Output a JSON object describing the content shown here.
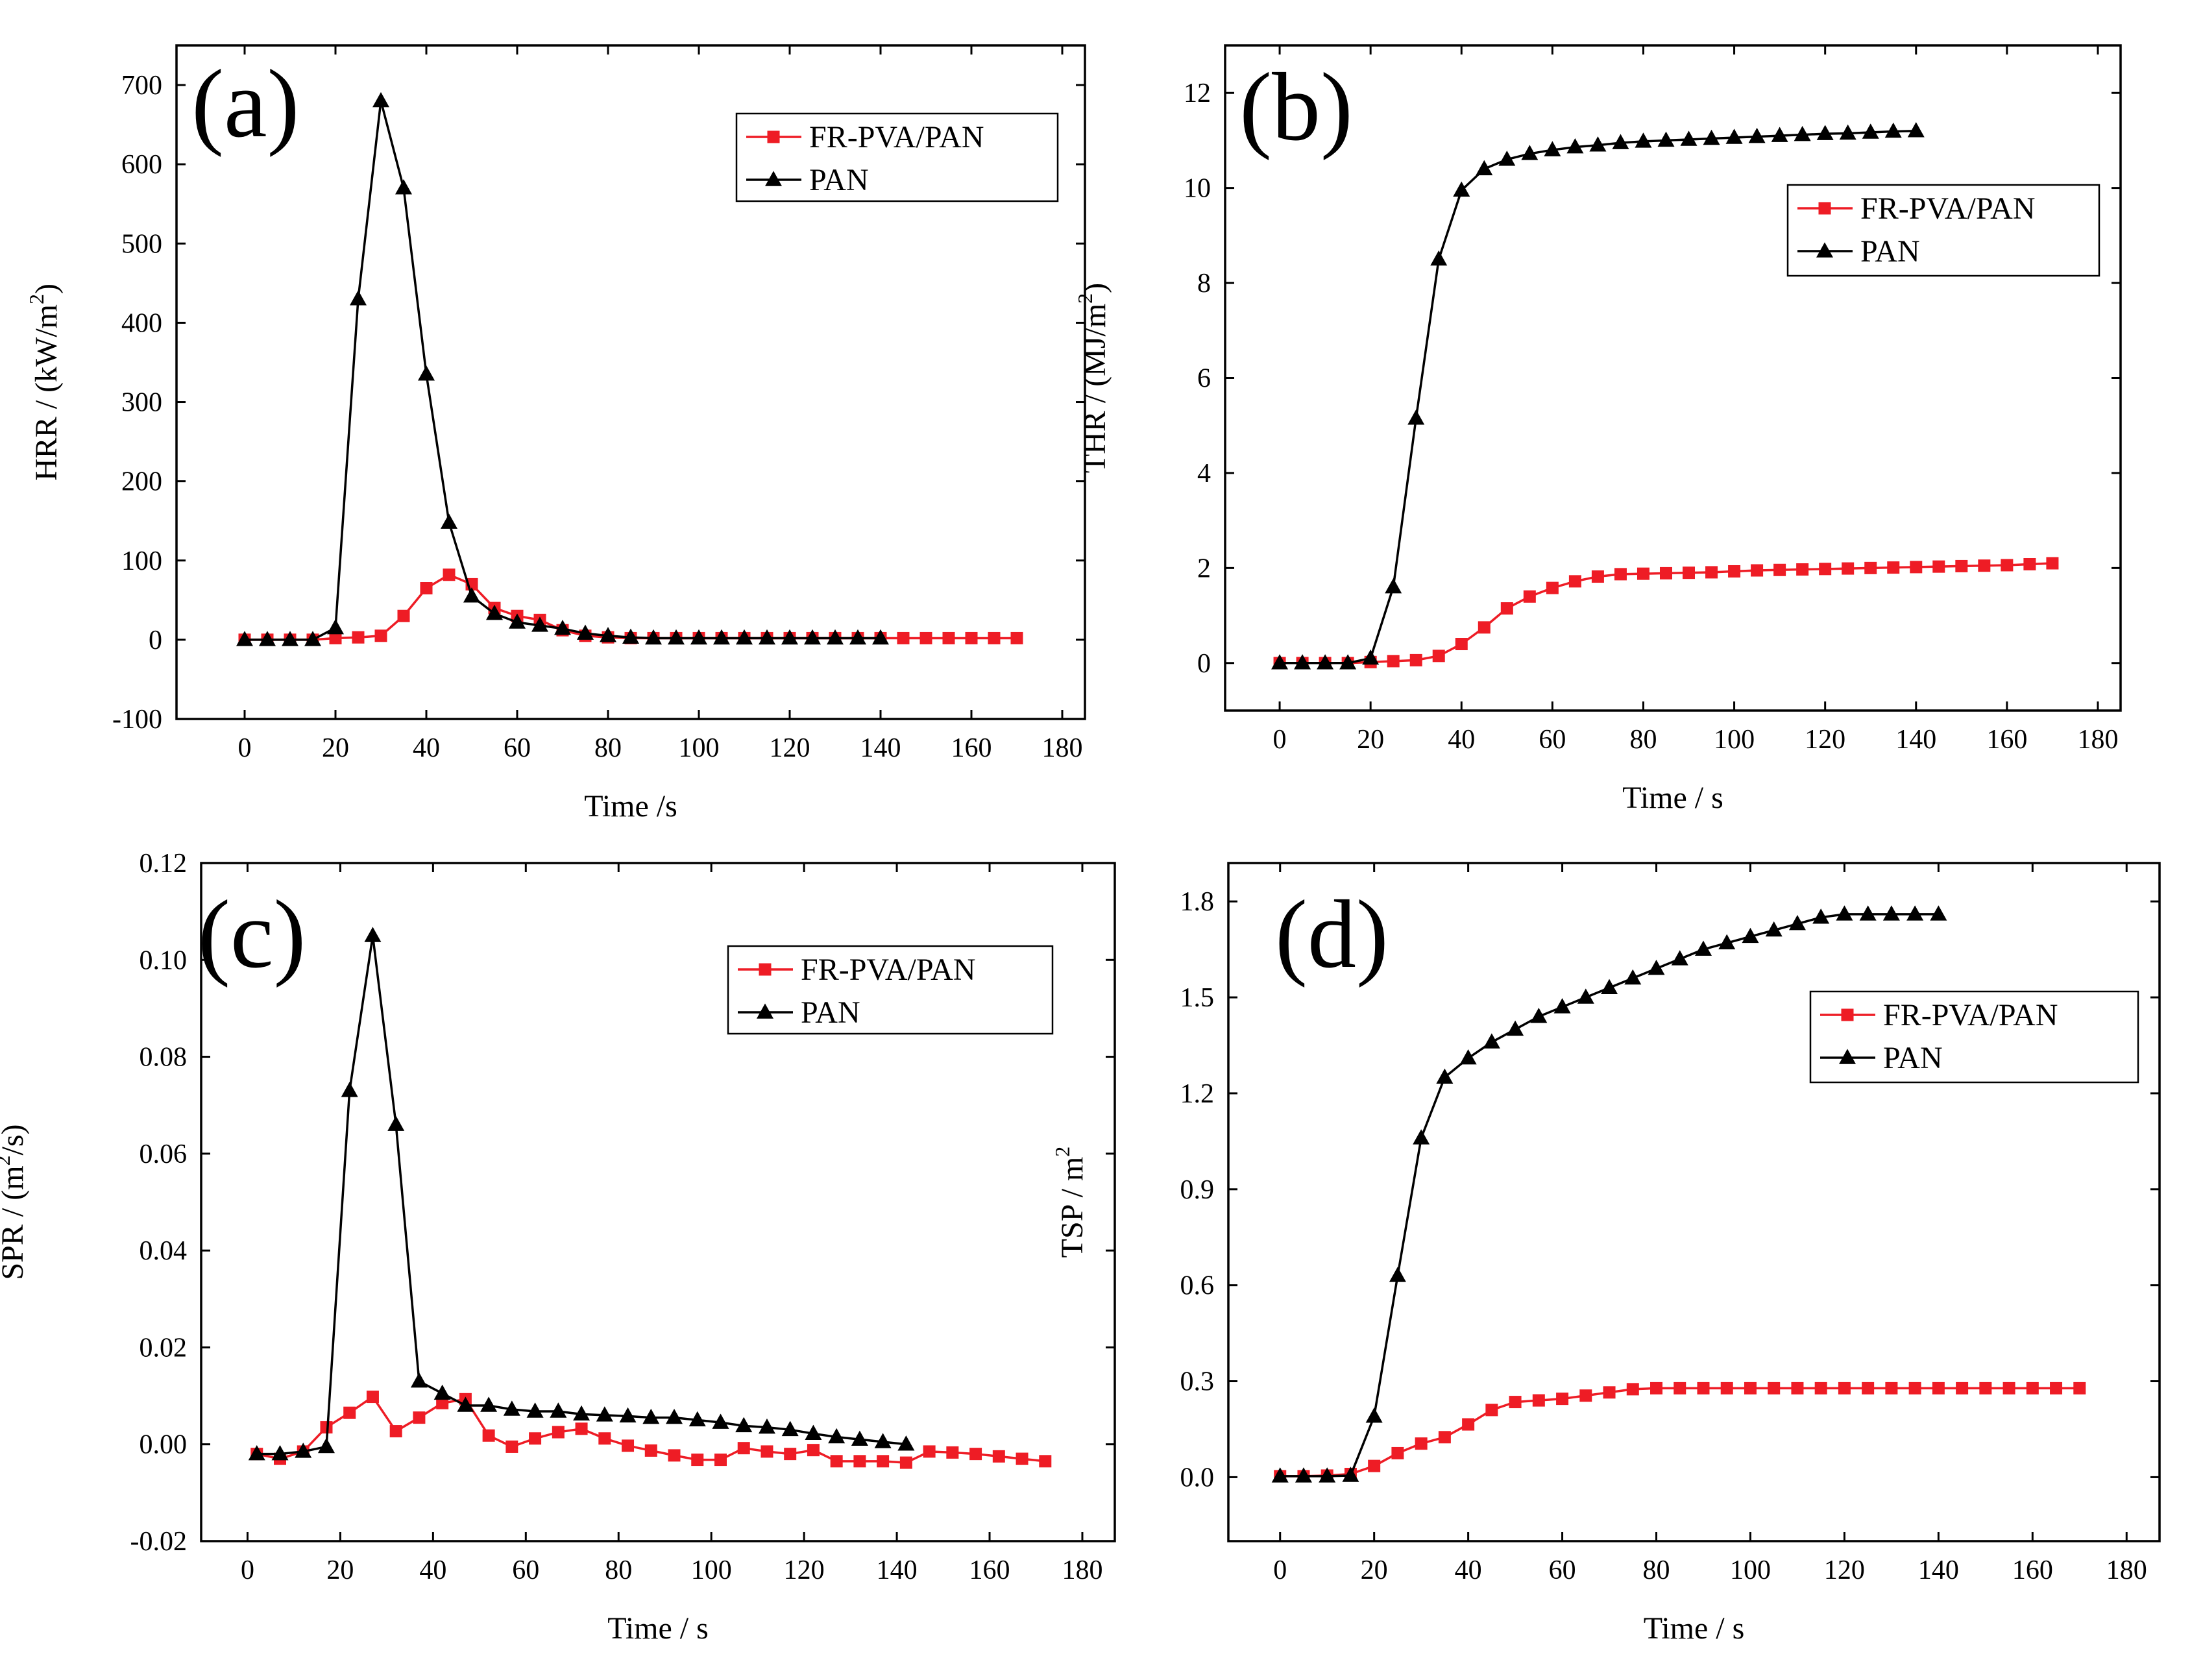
{
  "chart_data": [
    {
      "type": "line",
      "panel_label": "(a)",
      "xlabel": "Time /s",
      "ylabel_main": "HRR / (kW/m",
      "ylabel_sup": "2",
      "ylabel_tail": ")",
      "xlim": [
        -15,
        185
      ],
      "ylim": [
        -100,
        750
      ],
      "xticks": [
        0,
        20,
        40,
        60,
        80,
        100,
        120,
        140,
        160,
        180
      ],
      "xtick_labels": [
        "0",
        "20",
        "40",
        "60",
        "80",
        "100",
        "120",
        "140",
        "160",
        "180"
      ],
      "yticks": [
        -100,
        0,
        100,
        200,
        300,
        400,
        500,
        600,
        700
      ],
      "ytick_labels": [
        "-100",
        "0",
        "100",
        "200",
        "300",
        "400",
        "500",
        "600",
        "700"
      ],
      "legend_position": "top-right",
      "series": [
        {
          "name": "FR-PVA/PAN",
          "color": "#ee1c25",
          "marker": "square",
          "x": [
            0,
            5,
            10,
            15,
            20,
            25,
            30,
            35,
            40,
            45,
            50,
            55,
            60,
            65,
            70,
            75,
            80,
            85,
            90,
            95,
            100,
            105,
            110,
            115,
            120,
            125,
            130,
            135,
            140,
            145,
            150,
            155,
            160,
            165,
            170
          ],
          "y": [
            0,
            0,
            0,
            0,
            2,
            3,
            5,
            30,
            65,
            82,
            70,
            40,
            30,
            25,
            12,
            5,
            3,
            2,
            2,
            2,
            2,
            2,
            2,
            2,
            2,
            2,
            2,
            2,
            2,
            2,
            2,
            2,
            2,
            2,
            2
          ]
        },
        {
          "name": "PAN",
          "color": "#000000",
          "marker": "triangle",
          "x": [
            0,
            5,
            10,
            15,
            20,
            25,
            30,
            35,
            40,
            45,
            50,
            55,
            60,
            65,
            70,
            75,
            80,
            85,
            90,
            95,
            100,
            105,
            110,
            115,
            120,
            125,
            130,
            135,
            140
          ],
          "y": [
            0,
            0,
            0,
            0,
            15,
            430,
            680,
            570,
            335,
            148,
            55,
            33,
            22,
            18,
            14,
            8,
            5,
            3,
            2,
            2,
            2,
            2,
            2,
            2,
            2,
            2,
            2,
            2,
            2
          ]
        }
      ]
    },
    {
      "type": "line",
      "panel_label": "(b)",
      "xlabel": "Time / s",
      "ylabel_main": "THR / (MJ/m",
      "ylabel_sup": "2",
      "ylabel_tail": ")",
      "xlim": [
        -12,
        185
      ],
      "ylim": [
        -1,
        13
      ],
      "xticks": [
        0,
        20,
        40,
        60,
        80,
        100,
        120,
        140,
        160,
        180
      ],
      "xtick_labels": [
        "0",
        "20",
        "40",
        "60",
        "80",
        "100",
        "120",
        "140",
        "160",
        "180"
      ],
      "yticks": [
        0,
        2,
        4,
        6,
        8,
        10,
        12
      ],
      "ytick_labels": [
        "0",
        "2",
        "4",
        "6",
        "8",
        "10",
        "12"
      ],
      "legend_position": "top-right",
      "series": [
        {
          "name": "FR-PVA/PAN",
          "color": "#ee1c25",
          "marker": "square",
          "x": [
            0,
            5,
            10,
            15,
            20,
            25,
            30,
            35,
            40,
            45,
            50,
            55,
            60,
            65,
            70,
            75,
            80,
            85,
            90,
            95,
            100,
            105,
            110,
            115,
            120,
            125,
            130,
            135,
            140,
            145,
            150,
            155,
            160,
            165,
            170
          ],
          "y": [
            0,
            0,
            0,
            0,
            0.02,
            0.04,
            0.06,
            0.15,
            0.4,
            0.75,
            1.15,
            1.4,
            1.58,
            1.72,
            1.82,
            1.87,
            1.88,
            1.89,
            1.9,
            1.91,
            1.93,
            1.95,
            1.96,
            1.97,
            1.98,
            1.99,
            2.0,
            2.01,
            2.02,
            2.03,
            2.04,
            2.05,
            2.06,
            2.08,
            2.1
          ]
        },
        {
          "name": "PAN",
          "color": "#000000",
          "marker": "triangle",
          "x": [
            0,
            5,
            10,
            15,
            20,
            25,
            30,
            35,
            40,
            45,
            50,
            55,
            60,
            65,
            70,
            75,
            80,
            85,
            90,
            95,
            100,
            105,
            110,
            115,
            120,
            125,
            130,
            135,
            140
          ],
          "y": [
            0,
            0,
            0,
            0,
            0.1,
            1.6,
            5.15,
            8.5,
            9.95,
            10.4,
            10.6,
            10.72,
            10.8,
            10.86,
            10.9,
            10.95,
            10.98,
            11.0,
            11.02,
            11.04,
            11.06,
            11.08,
            11.1,
            11.12,
            11.14,
            11.15,
            11.17,
            11.19,
            11.2
          ]
        }
      ]
    },
    {
      "type": "line",
      "panel_label": "(c)",
      "xlabel": "Time / s",
      "ylabel_main": "SPR / (m",
      "ylabel_sup": "2",
      "ylabel_tail": "/s)",
      "xlim": [
        -10,
        187
      ],
      "ylim": [
        -0.02,
        0.12
      ],
      "xticks": [
        0,
        20,
        40,
        60,
        80,
        100,
        120,
        140,
        160,
        180
      ],
      "xtick_labels": [
        "0",
        "20",
        "40",
        "60",
        "80",
        "100",
        "120",
        "140",
        "160",
        "180"
      ],
      "yticks": [
        -0.02,
        0.0,
        0.02,
        0.04,
        0.06,
        0.08,
        0.1,
        0.12
      ],
      "ytick_labels": [
        "-0.02",
        "0.00",
        "0.02",
        "0.04",
        "0.06",
        "0.08",
        "0.10",
        "0.12"
      ],
      "legend_position": "top-right",
      "series": [
        {
          "name": "FR-PVA/PAN",
          "color": "#ee1c25",
          "marker": "square",
          "x": [
            2,
            7,
            12,
            17,
            22,
            27,
            32,
            37,
            42,
            47,
            52,
            57,
            62,
            67,
            72,
            77,
            82,
            87,
            92,
            97,
            102,
            107,
            112,
            117,
            122,
            127,
            132,
            137,
            142,
            147,
            152,
            157,
            162,
            167,
            172
          ],
          "y": [
            -0.002,
            -0.003,
            -0.0015,
            0.0035,
            0.0065,
            0.0098,
            0.0027,
            0.0055,
            0.0085,
            0.0093,
            0.0018,
            -0.0005,
            0.0012,
            0.0025,
            0.0032,
            0.0012,
            -0.0003,
            -0.0013,
            -0.0023,
            -0.0032,
            -0.0032,
            -0.0008,
            -0.0015,
            -0.002,
            -0.0012,
            -0.0035,
            -0.0035,
            -0.0035,
            -0.0038,
            -0.0015,
            -0.0017,
            -0.002,
            -0.0025,
            -0.003,
            -0.0035
          ]
        },
        {
          "name": "PAN",
          "color": "#000000",
          "marker": "triangle",
          "x": [
            2,
            7,
            12,
            17,
            22,
            27,
            32,
            37,
            42,
            47,
            52,
            57,
            62,
            67,
            72,
            77,
            82,
            87,
            92,
            97,
            102,
            107,
            112,
            117,
            122,
            127,
            132,
            137,
            142
          ],
          "y": [
            -0.002,
            -0.002,
            -0.0015,
            -0.0005,
            0.073,
            0.105,
            0.066,
            0.013,
            0.0105,
            0.008,
            0.008,
            0.0072,
            0.0068,
            0.0068,
            0.0062,
            0.006,
            0.0058,
            0.0055,
            0.0055,
            0.005,
            0.0045,
            0.0038,
            0.0035,
            0.003,
            0.0022,
            0.0015,
            0.001,
            0.0005,
            0.0
          ]
        }
      ]
    },
    {
      "type": "line",
      "panel_label": "(d)",
      "xlabel": "Time / s",
      "ylabel_main": "TSP / m",
      "ylabel_sup": "2",
      "ylabel_tail": "",
      "xlim": [
        -11,
        187
      ],
      "ylim": [
        -0.2,
        1.92
      ],
      "xticks": [
        0,
        20,
        40,
        60,
        80,
        100,
        120,
        140,
        160,
        180
      ],
      "xtick_labels": [
        "0",
        "20",
        "40",
        "60",
        "80",
        "100",
        "120",
        "140",
        "160",
        "180"
      ],
      "yticks": [
        0.0,
        0.3,
        0.6,
        0.9,
        1.2,
        1.5,
        1.8
      ],
      "ytick_labels": [
        "0.0",
        "0.3",
        "0.6",
        "0.9",
        "1.2",
        "1.5",
        "1.8"
      ],
      "legend_position": "right",
      "series": [
        {
          "name": "FR-PVA/PAN",
          "color": "#ee1c25",
          "marker": "square",
          "x": [
            0,
            5,
            10,
            15,
            20,
            25,
            30,
            35,
            40,
            45,
            50,
            55,
            60,
            65,
            70,
            75,
            80,
            85,
            90,
            95,
            100,
            105,
            110,
            115,
            120,
            125,
            130,
            135,
            140,
            145,
            150,
            155,
            160,
            165,
            170
          ],
          "y": [
            0.003,
            0.003,
            0.005,
            0.01,
            0.035,
            0.075,
            0.105,
            0.125,
            0.165,
            0.21,
            0.235,
            0.24,
            0.245,
            0.255,
            0.265,
            0.275,
            0.278,
            0.278,
            0.278,
            0.278,
            0.278,
            0.278,
            0.278,
            0.278,
            0.278,
            0.278,
            0.278,
            0.278,
            0.278,
            0.278,
            0.278,
            0.278,
            0.278,
            0.278,
            0.278
          ]
        },
        {
          "name": "PAN",
          "color": "#000000",
          "marker": "triangle",
          "x": [
            0,
            5,
            10,
            15,
            20,
            25,
            30,
            35,
            40,
            45,
            50,
            55,
            60,
            65,
            70,
            75,
            80,
            85,
            90,
            95,
            100,
            105,
            110,
            115,
            120,
            125,
            130,
            135,
            140
          ],
          "y": [
            0.003,
            0.003,
            0.003,
            0.005,
            0.19,
            0.63,
            1.06,
            1.25,
            1.31,
            1.36,
            1.4,
            1.44,
            1.47,
            1.5,
            1.53,
            1.56,
            1.59,
            1.62,
            1.65,
            1.67,
            1.69,
            1.71,
            1.73,
            1.75,
            1.76,
            1.76,
            1.76,
            1.76,
            1.76
          ]
        }
      ]
    }
  ]
}
